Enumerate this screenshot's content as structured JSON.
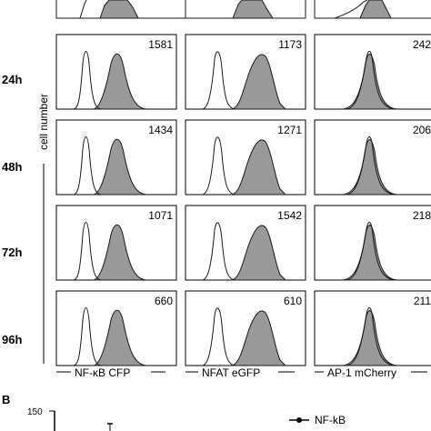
{
  "figure": {
    "y_axis_label": "cell number",
    "time_labels": [
      "24h",
      "48h",
      "72h",
      "96h"
    ],
    "columns": [
      "NF-κB CFP",
      "NFAT eGFP",
      "AP-1 mCherry"
    ],
    "values": [
      [
        "1581",
        "1173",
        "242"
      ],
      [
        "1434",
        "1271",
        "206"
      ],
      [
        "1071",
        "1542",
        "218"
      ],
      [
        "660",
        "610",
        "211"
      ]
    ]
  },
  "panel_b": {
    "letter": "B",
    "y_tick_top": "150",
    "legend_label": "NF-kB",
    "legend_color": "#000000"
  },
  "colors": {
    "fill": "#999999",
    "stroke": "#1a1a1a"
  }
}
